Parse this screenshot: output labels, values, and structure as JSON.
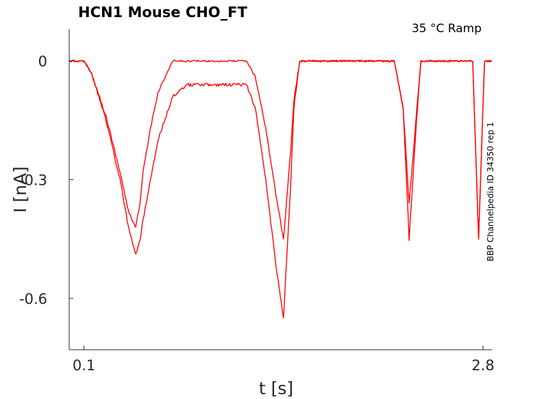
{
  "chart_data": {
    "type": "line",
    "title": "HCN1  Mouse  CHO_FT",
    "condition_label": "35 °C  Ramp",
    "side_label": "BBP Channelpedia ID 34350 rep 1",
    "xlabel": "t [s]",
    "ylabel": "I [nA]",
    "xlim": [
      0.0,
      2.86
    ],
    "ylim": [
      -0.73,
      0.08
    ],
    "xticks": [
      0.1,
      2.8
    ],
    "xtick_labels": [
      "0.1",
      "2.8"
    ],
    "yticks": [
      0,
      -0.3,
      -0.6
    ],
    "ytick_labels": [
      "0",
      "-0.3",
      "-0.6"
    ],
    "grid": false,
    "line_color": "#ff0000",
    "series": [
      {
        "x": [
          0.0,
          0.1,
          0.15,
          0.25,
          0.35,
          0.4,
          0.45,
          0.48,
          0.5,
          0.55,
          0.6,
          0.7,
          0.8,
          0.87,
          0.95,
          1.1,
          1.2,
          1.26,
          1.33,
          1.4,
          1.45,
          1.5,
          1.52,
          1.56,
          1.62,
          1.7,
          1.75,
          1.8,
          1.95,
          2.1,
          2.2,
          2.26,
          2.3,
          2.35,
          2.38,
          2.42,
          2.6,
          2.73,
          2.77,
          2.81,
          2.84,
          2.86
        ],
        "y": [
          0.0,
          0.0,
          -0.03,
          -0.14,
          -0.29,
          -0.38,
          -0.42,
          -0.36,
          -0.28,
          -0.17,
          -0.08,
          0.0,
          0.0,
          0.0,
          0.0,
          0.0,
          0.0,
          -0.04,
          -0.17,
          -0.34,
          -0.45,
          -0.22,
          -0.1,
          0.0,
          0.0,
          0.0,
          0.0,
          0.0,
          0.0,
          0.0,
          0.0,
          -0.12,
          -0.36,
          -0.13,
          0.0,
          0.0,
          0.0,
          0.0,
          -0.45,
          0.0,
          0.0,
          0.0
        ]
      },
      {
        "x": [
          0.0,
          0.1,
          0.15,
          0.25,
          0.35,
          0.4,
          0.45,
          0.48,
          0.5,
          0.55,
          0.6,
          0.7,
          0.8,
          0.87,
          0.95,
          1.1,
          1.2,
          1.26,
          1.33,
          1.4,
          1.45,
          1.5,
          1.52,
          1.56,
          1.62,
          1.7,
          1.75,
          1.8,
          1.95,
          2.1,
          2.2,
          2.26,
          2.3,
          2.35,
          2.38,
          2.42,
          2.6,
          2.73,
          2.77,
          2.81,
          2.84,
          2.86
        ],
        "y": [
          0.0,
          0.0,
          -0.03,
          -0.15,
          -0.31,
          -0.42,
          -0.49,
          -0.45,
          -0.4,
          -0.3,
          -0.2,
          -0.09,
          -0.06,
          -0.06,
          -0.06,
          -0.06,
          -0.06,
          -0.12,
          -0.3,
          -0.52,
          -0.65,
          -0.3,
          -0.12,
          0.0,
          0.0,
          0.0,
          0.0,
          0.0,
          0.0,
          0.0,
          0.0,
          -0.12,
          -0.45,
          -0.15,
          0.0,
          0.0,
          0.0,
          0.0,
          -0.45,
          0.0,
          0.0,
          0.0
        ]
      }
    ]
  }
}
